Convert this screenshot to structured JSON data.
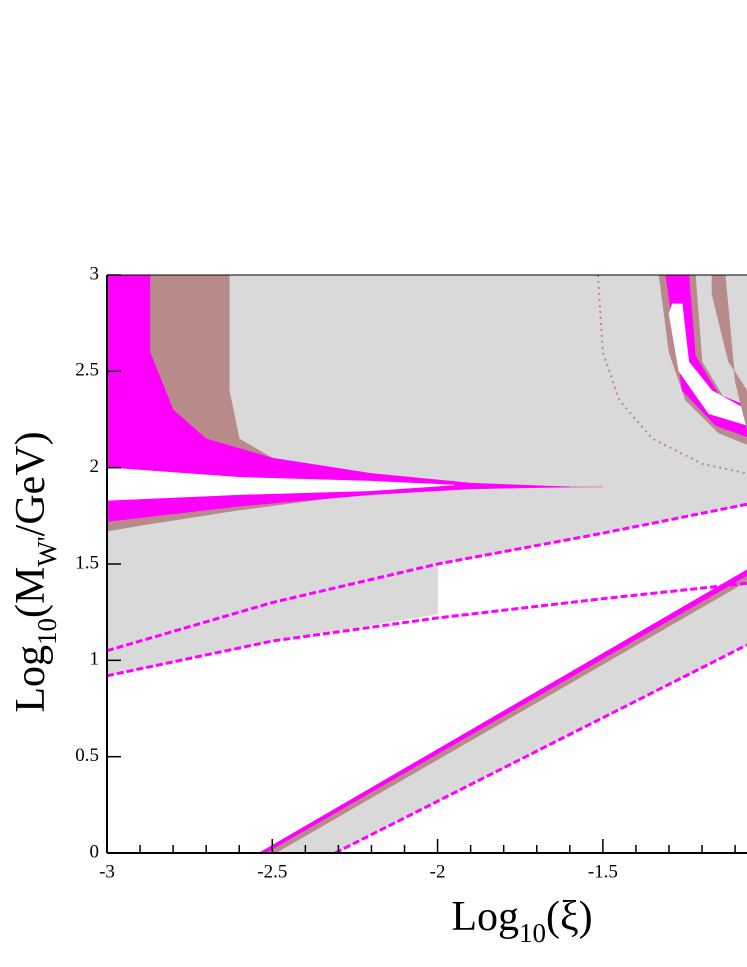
{
  "chart_data": {
    "type": "region",
    "xlim": [
      -3,
      -1.064
    ],
    "ylim": [
      0,
      3
    ],
    "xticks": [
      -3,
      -2.5,
      -2,
      -1.5
    ],
    "xminorticks": [
      -2.9,
      -2.8,
      -2.7,
      -2.6,
      -2.4,
      -2.3,
      -2.2,
      -2.1,
      -1.9,
      -1.8,
      -1.7,
      -1.6,
      -1.4,
      -1.3,
      -1.2,
      -1.1
    ],
    "yticks": [
      0,
      0.5,
      1,
      1.5,
      2,
      2.5,
      3
    ],
    "xlabel": [
      {
        "text": "Log"
      },
      {
        "text": "10",
        "baseline": "sub"
      },
      {
        "text": "(ξ)"
      }
    ],
    "ylabel": [
      {
        "text": "Log"
      },
      {
        "text": "10",
        "baseline": "sub"
      },
      {
        "text": "(M"
      },
      {
        "text": "W'",
        "baseline": "sub"
      },
      {
        "text": "/GeV)"
      }
    ],
    "regions": [
      {
        "color": "#d9d9d9",
        "x": [
          -2.63,
          -1.064,
          -1.064,
          -1.8,
          -2.2,
          -2.45,
          -2.6,
          -2.63
        ],
        "y": [
          3,
          3,
          1.9,
          1.9,
          1.93,
          2.0,
          2.15,
          2.4
        ]
      },
      {
        "color": "#d9d9d9",
        "x": [
          -3,
          -1.064,
          -1.064,
          -1.5,
          -2,
          -2.5,
          -3
        ],
        "y": [
          1.9,
          1.9,
          1.81,
          1.66,
          1.5,
          1.3,
          1.05
        ]
      },
      {
        "color": "#d9d9d9",
        "x": [
          -3,
          -2.5,
          -2,
          -2,
          -2.5,
          -3
        ],
        "y": [
          1.05,
          1.3,
          1.5,
          1.24,
          1.1,
          0.92
        ]
      },
      {
        "color": "#b88a8a",
        "x": [
          -3,
          -2.63,
          -2.63,
          -2.6,
          -2.45,
          -2.2,
          -1.8,
          -1.5,
          -1.8,
          -2.2,
          -2.6,
          -2.9,
          -3
        ],
        "y": [
          3,
          3,
          2.4,
          2.15,
          2.0,
          1.93,
          1.905,
          1.9,
          1.895,
          1.87,
          1.78,
          1.7,
          1.67
        ]
      },
      {
        "color": "#ff00ff",
        "x": [
          -3,
          -2.87,
          -2.87,
          -2.8,
          -2.7,
          -2.5,
          -2.2,
          -1.9,
          -1.6,
          -1.9,
          -2.2,
          -2.6,
          -3
        ],
        "y": [
          3,
          3,
          2.6,
          2.3,
          2.15,
          2.05,
          1.97,
          1.92,
          1.9,
          1.89,
          1.86,
          1.8,
          1.72
        ]
      },
      {
        "color": "#ffffff",
        "x": [
          -3,
          -2.6,
          -2.2,
          -1.95,
          -2.2,
          -2.6,
          -3
        ],
        "y": [
          2.0,
          1.95,
          1.93,
          1.91,
          1.88,
          1.86,
          1.83
        ]
      },
      {
        "color": "#d9d9d9",
        "x": [
          -2.54,
          -1.064,
          -1.064,
          -2.31
        ],
        "y": [
          0,
          1.47,
          1.08,
          0
        ]
      },
      {
        "color": "#b88a8a",
        "x": [
          -2.54,
          -1.064,
          -1.064,
          -2.49
        ],
        "y": [
          0,
          1.47,
          1.41,
          0
        ]
      },
      {
        "color": "#ff00ff",
        "x": [
          -2.54,
          -1.064,
          -1.064,
          -2.52
        ],
        "y": [
          0,
          1.47,
          1.44,
          0
        ]
      },
      {
        "color": "#b88a8a",
        "x": [
          -1.33,
          -1.22,
          -1.2,
          -1.13,
          -1.064,
          -1.064,
          -1.15,
          -1.25,
          -1.3,
          -1.33
        ],
        "y": [
          3,
          3,
          2.55,
          2.35,
          2.3,
          2.12,
          2.18,
          2.35,
          2.6,
          3
        ]
      },
      {
        "color": "#ff00ff",
        "x": [
          -1.31,
          -1.24,
          -1.22,
          -1.15,
          -1.064,
          -1.064,
          -1.16,
          -1.26,
          -1.31
        ],
        "y": [
          3,
          3,
          2.58,
          2.38,
          2.32,
          2.16,
          2.22,
          2.4,
          3
        ]
      },
      {
        "color": "#ffffff",
        "x": [
          -1.29,
          -1.26,
          -1.24,
          -1.17,
          -1.064,
          -1.064,
          -1.18,
          -1.27,
          -1.3
        ],
        "y": [
          2.85,
          2.85,
          2.55,
          2.4,
          2.3,
          2.22,
          2.28,
          2.5,
          2.8
        ]
      },
      {
        "color": "#b88a8a",
        "x": [
          -1.17,
          -1.13,
          -1.1,
          -1.064,
          -1.064,
          -1.12,
          -1.17
        ],
        "y": [
          3,
          3,
          2.45,
          2.2,
          2.4,
          2.55,
          2.9
        ]
      }
    ],
    "lines": [
      {
        "color": "#ff00ff",
        "style": "dashed",
        "x": [
          -3,
          -2.5,
          -2,
          -1.5,
          -1.064
        ],
        "y": [
          1.05,
          1.3,
          1.5,
          1.66,
          1.81
        ]
      },
      {
        "color": "#ff00ff",
        "style": "dashed",
        "x": [
          -3,
          -2.5,
          -2,
          -1.5,
          -1.064
        ],
        "y": [
          0.92,
          1.1,
          1.22,
          1.32,
          1.4
        ]
      },
      {
        "color": "#ff00ff",
        "style": "dashed",
        "x": [
          -2.31,
          -1.064
        ],
        "y": [
          0,
          1.08
        ]
      },
      {
        "color": "#b88a8a",
        "style": "dotted",
        "x": [
          -1.515,
          -1.5,
          -1.45,
          -1.35,
          -1.2,
          -1.064
        ],
        "y": [
          3,
          2.6,
          2.35,
          2.15,
          2.02,
          1.97
        ]
      }
    ]
  }
}
